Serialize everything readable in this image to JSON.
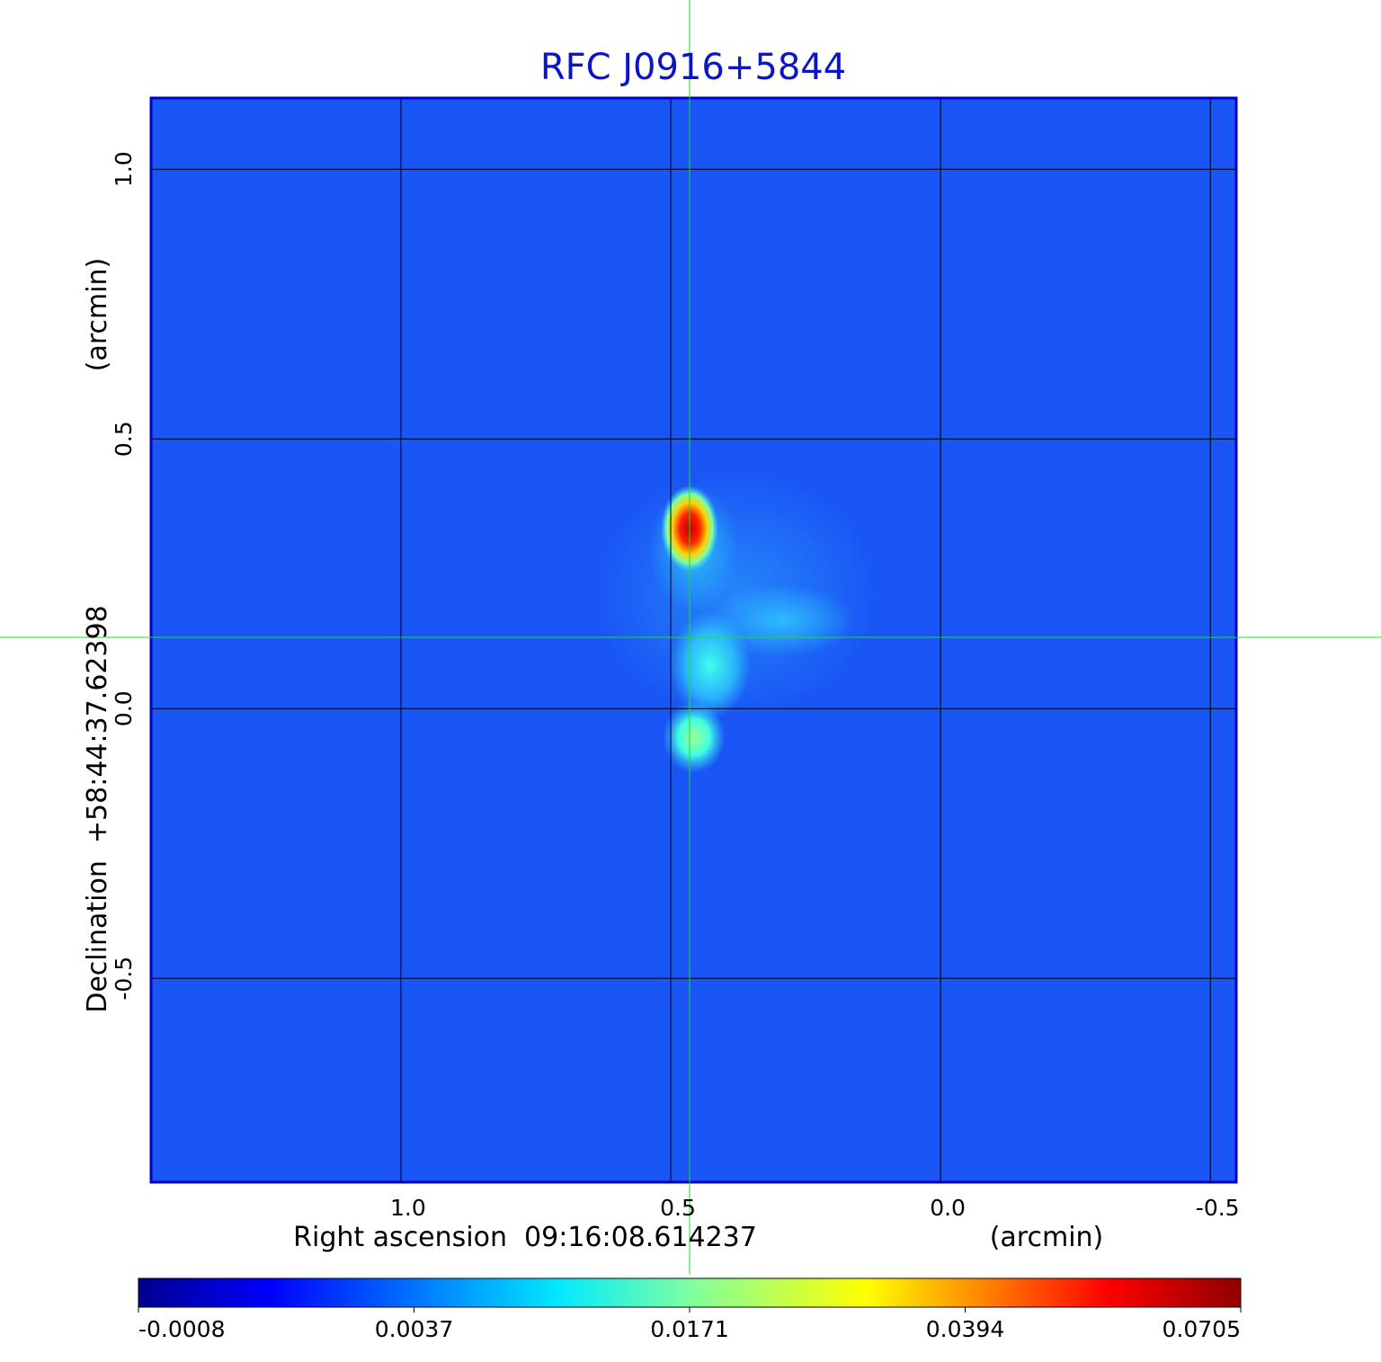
{
  "chart_data": {
    "type": "image",
    "title": "RFC J0916+5844",
    "xlabel": "Right ascension  09:16:08.614237",
    "xunit": "(arcmin)",
    "ylabel": "Declination  +58:44:37.62398",
    "yunit": "(arcmin)",
    "xlim": [
      1.463,
      -0.548
    ],
    "ylim": [
      -0.878,
      1.132
    ],
    "xticks": [
      {
        "value": 1.0,
        "label": "1.0"
      },
      0.5,
      {
        "value": 0.0,
        "label": "0.0"
      },
      -0.5
    ],
    "yticks": [
      {
        "value": 1.0,
        "label": "1.0"
      },
      0.5,
      {
        "value": 0.0,
        "label": "0.0"
      },
      -0.5
    ],
    "grid": true,
    "colormap": "jet",
    "colorbar_ticks": [
      -0.0008,
      0.0037,
      0.0171,
      0.0394,
      0.0705
    ]
  }
}
